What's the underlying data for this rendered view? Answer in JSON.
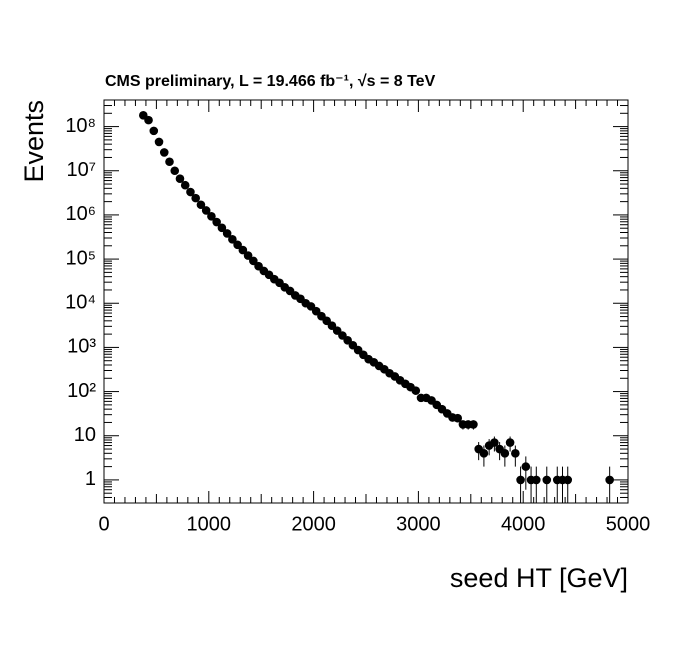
{
  "chart_data": {
    "type": "scatter",
    "title": "CMS preliminary, L = 19.466 fb⁻¹, √s = 8 TeV",
    "x_label": "seed HT [GeV]",
    "y_label": "Events",
    "log_y": true,
    "color": "#000000",
    "x": [
      375,
      425,
      475,
      525,
      575,
      625,
      675,
      725,
      775,
      825,
      875,
      925,
      975,
      1025,
      1075,
      1125,
      1175,
      1225,
      1275,
      1325,
      1375,
      1425,
      1475,
      1525,
      1575,
      1625,
      1675,
      1725,
      1775,
      1825,
      1875,
      1925,
      1975,
      2025,
      2075,
      2125,
      2175,
      2225,
      2275,
      2325,
      2375,
      2425,
      2475,
      2525,
      2575,
      2625,
      2675,
      2725,
      2775,
      2825,
      2875,
      2925,
      2975,
      3025,
      3075,
      3125,
      3175,
      3225,
      3275,
      3325,
      3375,
      3425,
      3475,
      3525,
      3575,
      3625,
      3675,
      3725,
      3775,
      3825,
      3875,
      3925,
      3975,
      4025,
      4075,
      4125,
      4225,
      4325,
      4375,
      4425,
      4825
    ],
    "values": [
      180000000,
      140000000,
      80000000,
      45000000,
      26000000,
      16000000,
      10000000,
      6600000,
      4700000,
      3300000,
      2400000,
      1700000,
      1260000,
      930000,
      690000,
      510000,
      380000,
      280000,
      210000,
      160000,
      120000,
      91000,
      69000,
      54000,
      44000,
      35000,
      29000,
      23000,
      19000,
      15000,
      12600,
      10000,
      8500,
      6600,
      5100,
      4000,
      3100,
      2400,
      1860,
      1450,
      1120,
      870,
      680,
      540,
      460,
      380,
      320,
      260,
      220,
      180,
      150,
      126,
      105,
      72,
      72,
      63,
      50,
      40,
      32,
      26,
      25,
      18,
      18,
      18,
      5,
      4,
      6,
      7,
      5,
      4,
      7,
      4,
      1,
      2,
      1,
      1,
      1,
      1,
      1,
      1,
      1
    ],
    "errors": [
      null,
      null,
      null,
      null,
      null,
      null,
      null,
      null,
      null,
      null,
      null,
      null,
      null,
      null,
      null,
      null,
      null,
      null,
      null,
      null,
      null,
      null,
      null,
      null,
      null,
      null,
      null,
      null,
      null,
      null,
      null,
      null,
      null,
      null,
      null,
      null,
      null,
      null,
      null,
      null,
      null,
      null,
      null,
      null,
      null,
      null,
      null,
      null,
      null,
      null,
      null,
      null,
      null,
      null,
      null,
      null,
      7.1,
      6.3,
      5.7,
      5.1,
      5,
      4.2,
      4.2,
      4.2,
      2.2,
      2,
      2.4,
      2.6,
      2.2,
      2,
      2.6,
      2,
      1,
      1.4,
      1,
      1,
      1,
      1,
      1,
      1,
      1
    ],
    "xlim": [
      0,
      5000
    ],
    "xticks": [
      0,
      1000,
      2000,
      3000,
      4000,
      5000
    ],
    "ylim": [
      0.3,
      400000000
    ],
    "yticks": [
      1,
      10,
      {
        "value": 100,
        "label": "10²"
      },
      {
        "value": 1000,
        "label": "10³"
      },
      {
        "value": 10000,
        "label": "10⁴"
      },
      {
        "value": 100000,
        "label": "10⁵"
      },
      {
        "value": 1000000,
        "label": "10⁶"
      },
      {
        "value": 10000000,
        "label": "10⁷"
      },
      {
        "value": 100000000,
        "label": "10⁸"
      }
    ]
  }
}
